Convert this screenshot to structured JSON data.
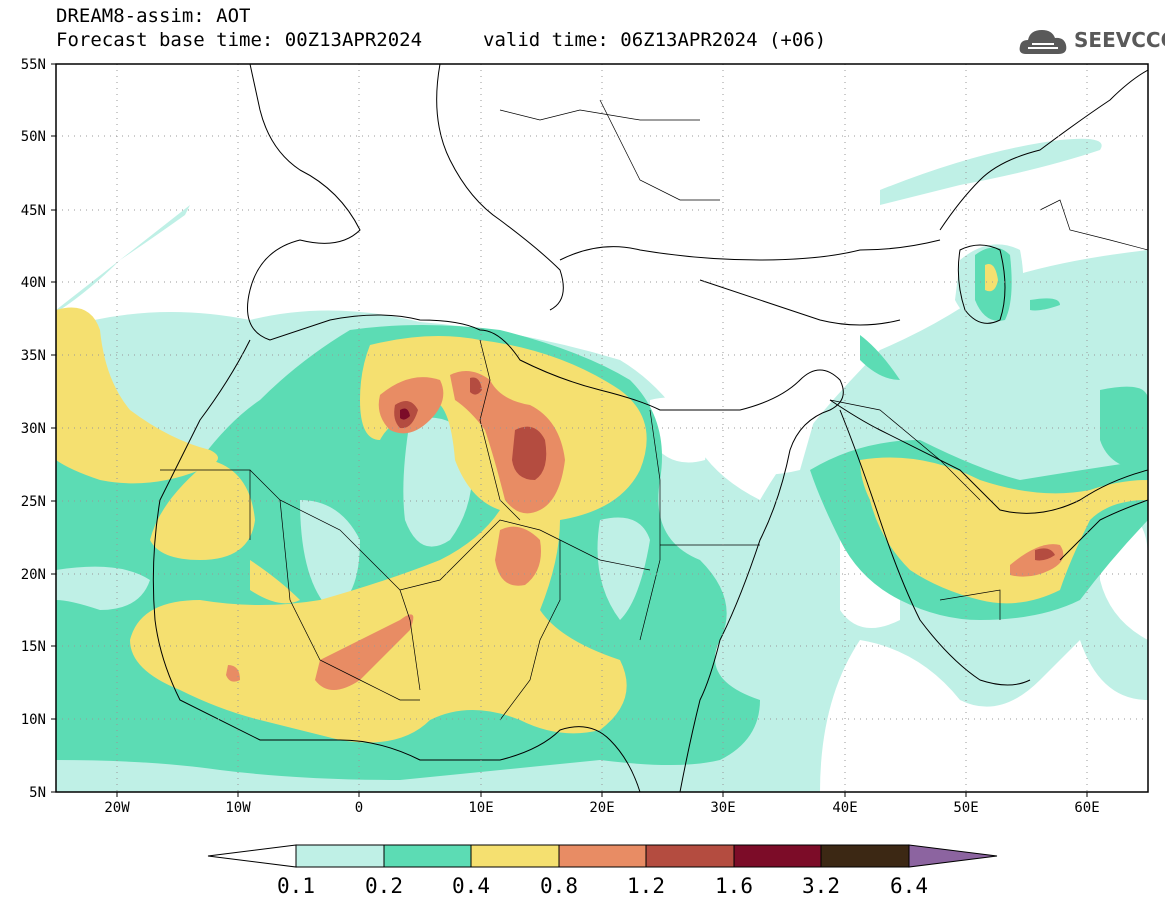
{
  "header": {
    "line1": "DREAM8-assim: AOT",
    "line2": "Forecast base time: 00Z13APR2024",
    "line3": "valid time: 06Z13APR2024 (+06)"
  },
  "logo": {
    "text": "SEEVCCC",
    "icon": "cloud-icon"
  },
  "map": {
    "lat_labels": [
      "55N",
      "50N",
      "45N",
      "40N",
      "35N",
      "30N",
      "25N",
      "20N",
      "15N",
      "10N",
      "5N"
    ],
    "lon_labels": [
      "20W",
      "10W",
      "0",
      "10E",
      "20E",
      "30E",
      "40E",
      "50E",
      "60E"
    ],
    "lon_range": [
      -25,
      65
    ],
    "lat_range": [
      5,
      55
    ]
  },
  "colorbar": {
    "labels": [
      "0.1",
      "0.2",
      "0.4",
      "0.8",
      "1.2",
      "1.6",
      "3.2",
      "6.4"
    ],
    "colors": [
      "#ffffff",
      "#bff0e6",
      "#5cdcb4",
      "#f5e070",
      "#e88c64",
      "#b44c40",
      "#7c0c28",
      "#3c2814",
      "#8c64a0"
    ]
  },
  "colors": {
    "low": "#bff0e6",
    "mid": "#5cdcb4",
    "high": "#f5e070",
    "orange": "#e88c64",
    "brown": "#b44c40",
    "dark": "#7c0c28"
  }
}
